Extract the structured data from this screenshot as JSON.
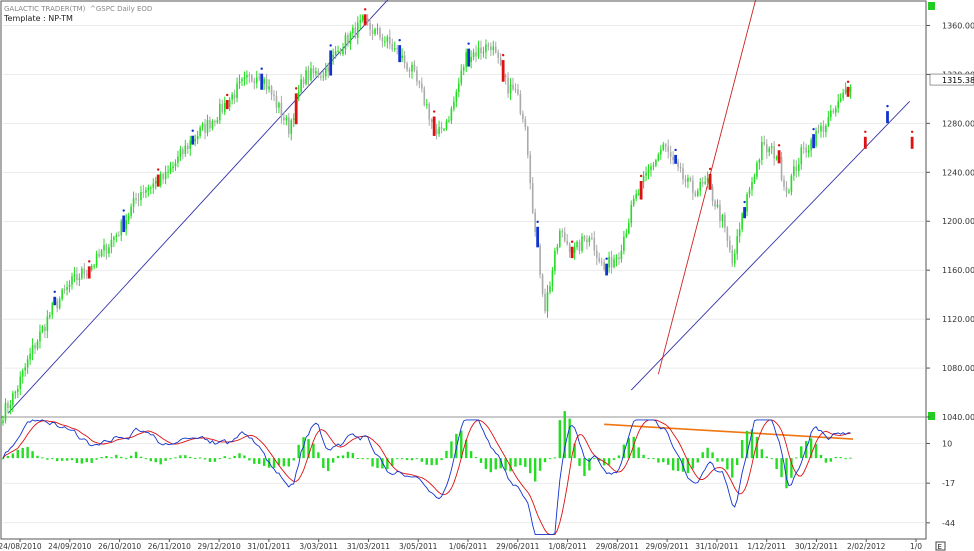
{
  "header": {
    "symbol_line": "GALACTIC TRADER(TM)",
    "series_line": "^GSPC Daily EOD",
    "template_label": "Template : NP-TM"
  },
  "colors": {
    "up": "#22dd22",
    "down_bar": "#aaaaaa",
    "red_signal": "#dd1111",
    "blue_signal": "#1133cc",
    "trend_blue": "#3333aa",
    "trend_red": "#cc2222",
    "trend_orange": "#ee7711",
    "grid_line": "#d8d8d8",
    "corner_marker": "#22cc22"
  },
  "chart_data": [
    {
      "type": "candlestick",
      "name": "price-panel",
      "ylim": [
        1040,
        1380
      ],
      "y_ticks": [
        "1360.00",
        "1320.00",
        "1280.00",
        "1240.00",
        "1200.00",
        "1160.00",
        "1120.00",
        "1080.00",
        "1040.00"
      ],
      "last_value": "1315.38",
      "x_labels": [
        "24/08/2010",
        "24/09/2010",
        "26/10/2010",
        "26/11/2010",
        "29/12/2010",
        "31/01/2011",
        "3/03/2011",
        "31/03/2011",
        "3/05/2011",
        "1/06/2011",
        "29/06/2011",
        "1/08/2011",
        "29/08/2011",
        "29/09/2011",
        "31/10/2011",
        "1/12/2011",
        "30/12/2011",
        "2/02/2012",
        "1/0"
      ],
      "anchors": [
        [
          0,
          1043
        ],
        [
          5,
          1060
        ],
        [
          12,
          1095
        ],
        [
          20,
          1128
        ],
        [
          28,
          1150
        ],
        [
          38,
          1168
        ],
        [
          48,
          1195
        ],
        [
          56,
          1225
        ],
        [
          66,
          1236
        ],
        [
          76,
          1265
        ],
        [
          86,
          1285
        ],
        [
          96,
          1310
        ],
        [
          104,
          1322
        ],
        [
          110,
          1300
        ],
        [
          116,
          1276
        ],
        [
          122,
          1318
        ],
        [
          130,
          1322
        ],
        [
          138,
          1345
        ],
        [
          146,
          1362
        ],
        [
          154,
          1350
        ],
        [
          160,
          1338
        ],
        [
          166,
          1322
        ],
        [
          172,
          1294
        ],
        [
          176,
          1268
        ],
        [
          182,
          1290
        ],
        [
          188,
          1335
        ],
        [
          194,
          1340
        ],
        [
          198,
          1345
        ],
        [
          204,
          1312
        ],
        [
          208,
          1305
        ],
        [
          212,
          1282
        ],
        [
          216,
          1190
        ],
        [
          220,
          1130
        ],
        [
          226,
          1190
        ],
        [
          232,
          1175
        ],
        [
          238,
          1190
        ],
        [
          244,
          1160
        ],
        [
          250,
          1175
        ],
        [
          256,
          1215
        ],
        [
          262,
          1240
        ],
        [
          268,
          1262
        ],
        [
          274,
          1240
        ],
        [
          280,
          1225
        ],
        [
          286,
          1230
        ],
        [
          292,
          1200
        ],
        [
          296,
          1165
        ],
        [
          302,
          1220
        ],
        [
          308,
          1260
        ],
        [
          314,
          1255
        ],
        [
          318,
          1225
        ],
        [
          324,
          1255
        ],
        [
          330,
          1270
        ],
        [
          336,
          1285
        ],
        [
          340,
          1298
        ],
        [
          344,
          1315
        ]
      ],
      "n_bars": 345,
      "projection_marks": [
        {
          "x_index": 350,
          "value": 1262,
          "color": "red"
        },
        {
          "x_index": 359,
          "value": 1283,
          "color": "blue"
        },
        {
          "x_index": 369,
          "value": 1262,
          "color": "red"
        }
      ]
    },
    {
      "type": "oscillator",
      "name": "oscillator-panel",
      "ylim": [
        -55,
        28
      ],
      "y_ticks": [
        "10",
        "-17",
        "-44"
      ],
      "series": [
        {
          "color": "blue"
        },
        {
          "color": "red"
        },
        {
          "color": "green",
          "kind": "histogram"
        }
      ]
    }
  ]
}
